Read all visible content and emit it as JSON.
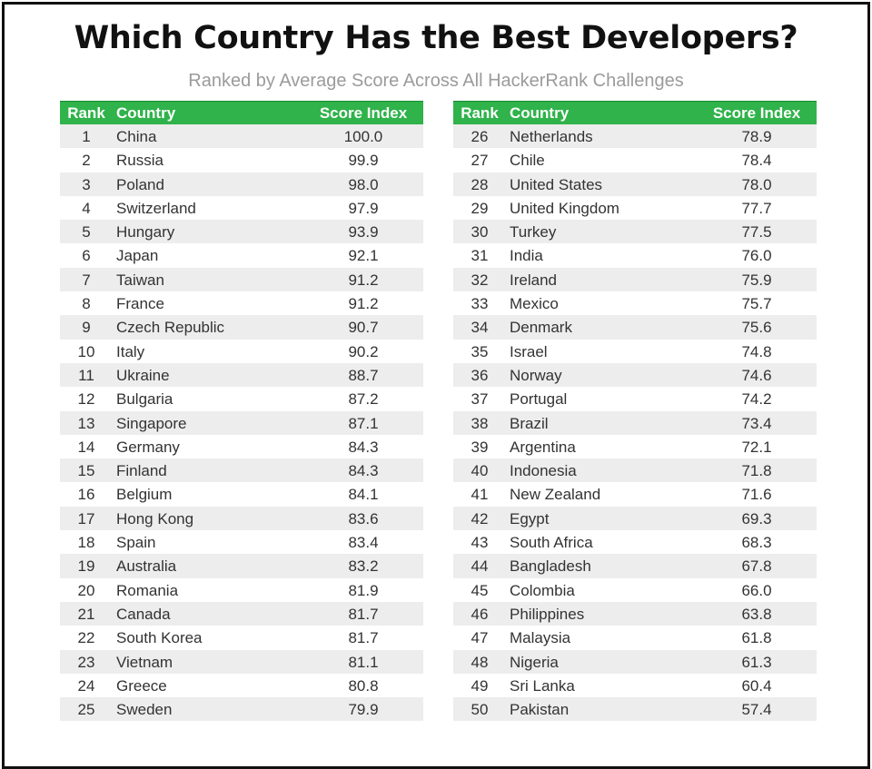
{
  "title": "Which Country Has the Best Developers?",
  "subtitle": "Ranked by Average Score Across All HackerRank Challenges",
  "colors": {
    "header_bg": "#2fb34a",
    "row_stripe": "#ededed",
    "subtitle": "#9b9b9b"
  },
  "columns": {
    "rank": "Rank",
    "country": "Country",
    "score": "Score Index"
  },
  "chart_data": {
    "type": "table",
    "title": "Which Country Has the Best Developers?",
    "subtitle": "Ranked by Average Score Across All HackerRank Challenges",
    "columns": [
      "Rank",
      "Country",
      "Score Index"
    ],
    "rows": [
      {
        "rank": "1",
        "country": "China",
        "score": "100.0"
      },
      {
        "rank": "2",
        "country": "Russia",
        "score": "99.9"
      },
      {
        "rank": "3",
        "country": "Poland",
        "score": "98.0"
      },
      {
        "rank": "4",
        "country": "Switzerland",
        "score": "97.9"
      },
      {
        "rank": "5",
        "country": "Hungary",
        "score": "93.9"
      },
      {
        "rank": "6",
        "country": "Japan",
        "score": "92.1"
      },
      {
        "rank": "7",
        "country": "Taiwan",
        "score": "91.2"
      },
      {
        "rank": "8",
        "country": "France",
        "score": "91.2"
      },
      {
        "rank": "9",
        "country": "Czech Republic",
        "score": "90.7"
      },
      {
        "rank": "10",
        "country": "Italy",
        "score": "90.2"
      },
      {
        "rank": "11",
        "country": "Ukraine",
        "score": "88.7"
      },
      {
        "rank": "12",
        "country": "Bulgaria",
        "score": "87.2"
      },
      {
        "rank": "13",
        "country": "Singapore",
        "score": "87.1"
      },
      {
        "rank": "14",
        "country": "Germany",
        "score": "84.3"
      },
      {
        "rank": "15",
        "country": "Finland",
        "score": "84.3"
      },
      {
        "rank": "16",
        "country": "Belgium",
        "score": "84.1"
      },
      {
        "rank": "17",
        "country": "Hong Kong",
        "score": "83.6"
      },
      {
        "rank": "18",
        "country": "Spain",
        "score": "83.4"
      },
      {
        "rank": "19",
        "country": "Australia",
        "score": "83.2"
      },
      {
        "rank": "20",
        "country": "Romania",
        "score": "81.9"
      },
      {
        "rank": "21",
        "country": "Canada",
        "score": "81.7"
      },
      {
        "rank": "22",
        "country": "South Korea",
        "score": "81.7"
      },
      {
        "rank": "23",
        "country": "Vietnam",
        "score": "81.1"
      },
      {
        "rank": "24",
        "country": "Greece",
        "score": "80.8"
      },
      {
        "rank": "25",
        "country": "Sweden",
        "score": "79.9"
      },
      {
        "rank": "26",
        "country": "Netherlands",
        "score": "78.9"
      },
      {
        "rank": "27",
        "country": "Chile",
        "score": "78.4"
      },
      {
        "rank": "28",
        "country": "United States",
        "score": "78.0"
      },
      {
        "rank": "29",
        "country": "United Kingdom",
        "score": "77.7"
      },
      {
        "rank": "30",
        "country": "Turkey",
        "score": "77.5"
      },
      {
        "rank": "31",
        "country": "India",
        "score": "76.0"
      },
      {
        "rank": "32",
        "country": "Ireland",
        "score": "75.9"
      },
      {
        "rank": "33",
        "country": "Mexico",
        "score": "75.7"
      },
      {
        "rank": "34",
        "country": "Denmark",
        "score": "75.6"
      },
      {
        "rank": "35",
        "country": "Israel",
        "score": "74.8"
      },
      {
        "rank": "36",
        "country": "Norway",
        "score": "74.6"
      },
      {
        "rank": "37",
        "country": "Portugal",
        "score": "74.2"
      },
      {
        "rank": "38",
        "country": "Brazil",
        "score": "73.4"
      },
      {
        "rank": "39",
        "country": "Argentina",
        "score": "72.1"
      },
      {
        "rank": "40",
        "country": "Indonesia",
        "score": "71.8"
      },
      {
        "rank": "41",
        "country": "New Zealand",
        "score": "71.6"
      },
      {
        "rank": "42",
        "country": "Egypt",
        "score": "69.3"
      },
      {
        "rank": "43",
        "country": "South Africa",
        "score": "68.3"
      },
      {
        "rank": "44",
        "country": "Bangladesh",
        "score": "67.8"
      },
      {
        "rank": "45",
        "country": "Colombia",
        "score": "66.0"
      },
      {
        "rank": "46",
        "country": "Philippines",
        "score": "63.8"
      },
      {
        "rank": "47",
        "country": "Malaysia",
        "score": "61.8"
      },
      {
        "rank": "48",
        "country": "Nigeria",
        "score": "61.3"
      },
      {
        "rank": "49",
        "country": "Sri Lanka",
        "score": "60.4"
      },
      {
        "rank": "50",
        "country": "Pakistan",
        "score": "57.4"
      }
    ]
  }
}
